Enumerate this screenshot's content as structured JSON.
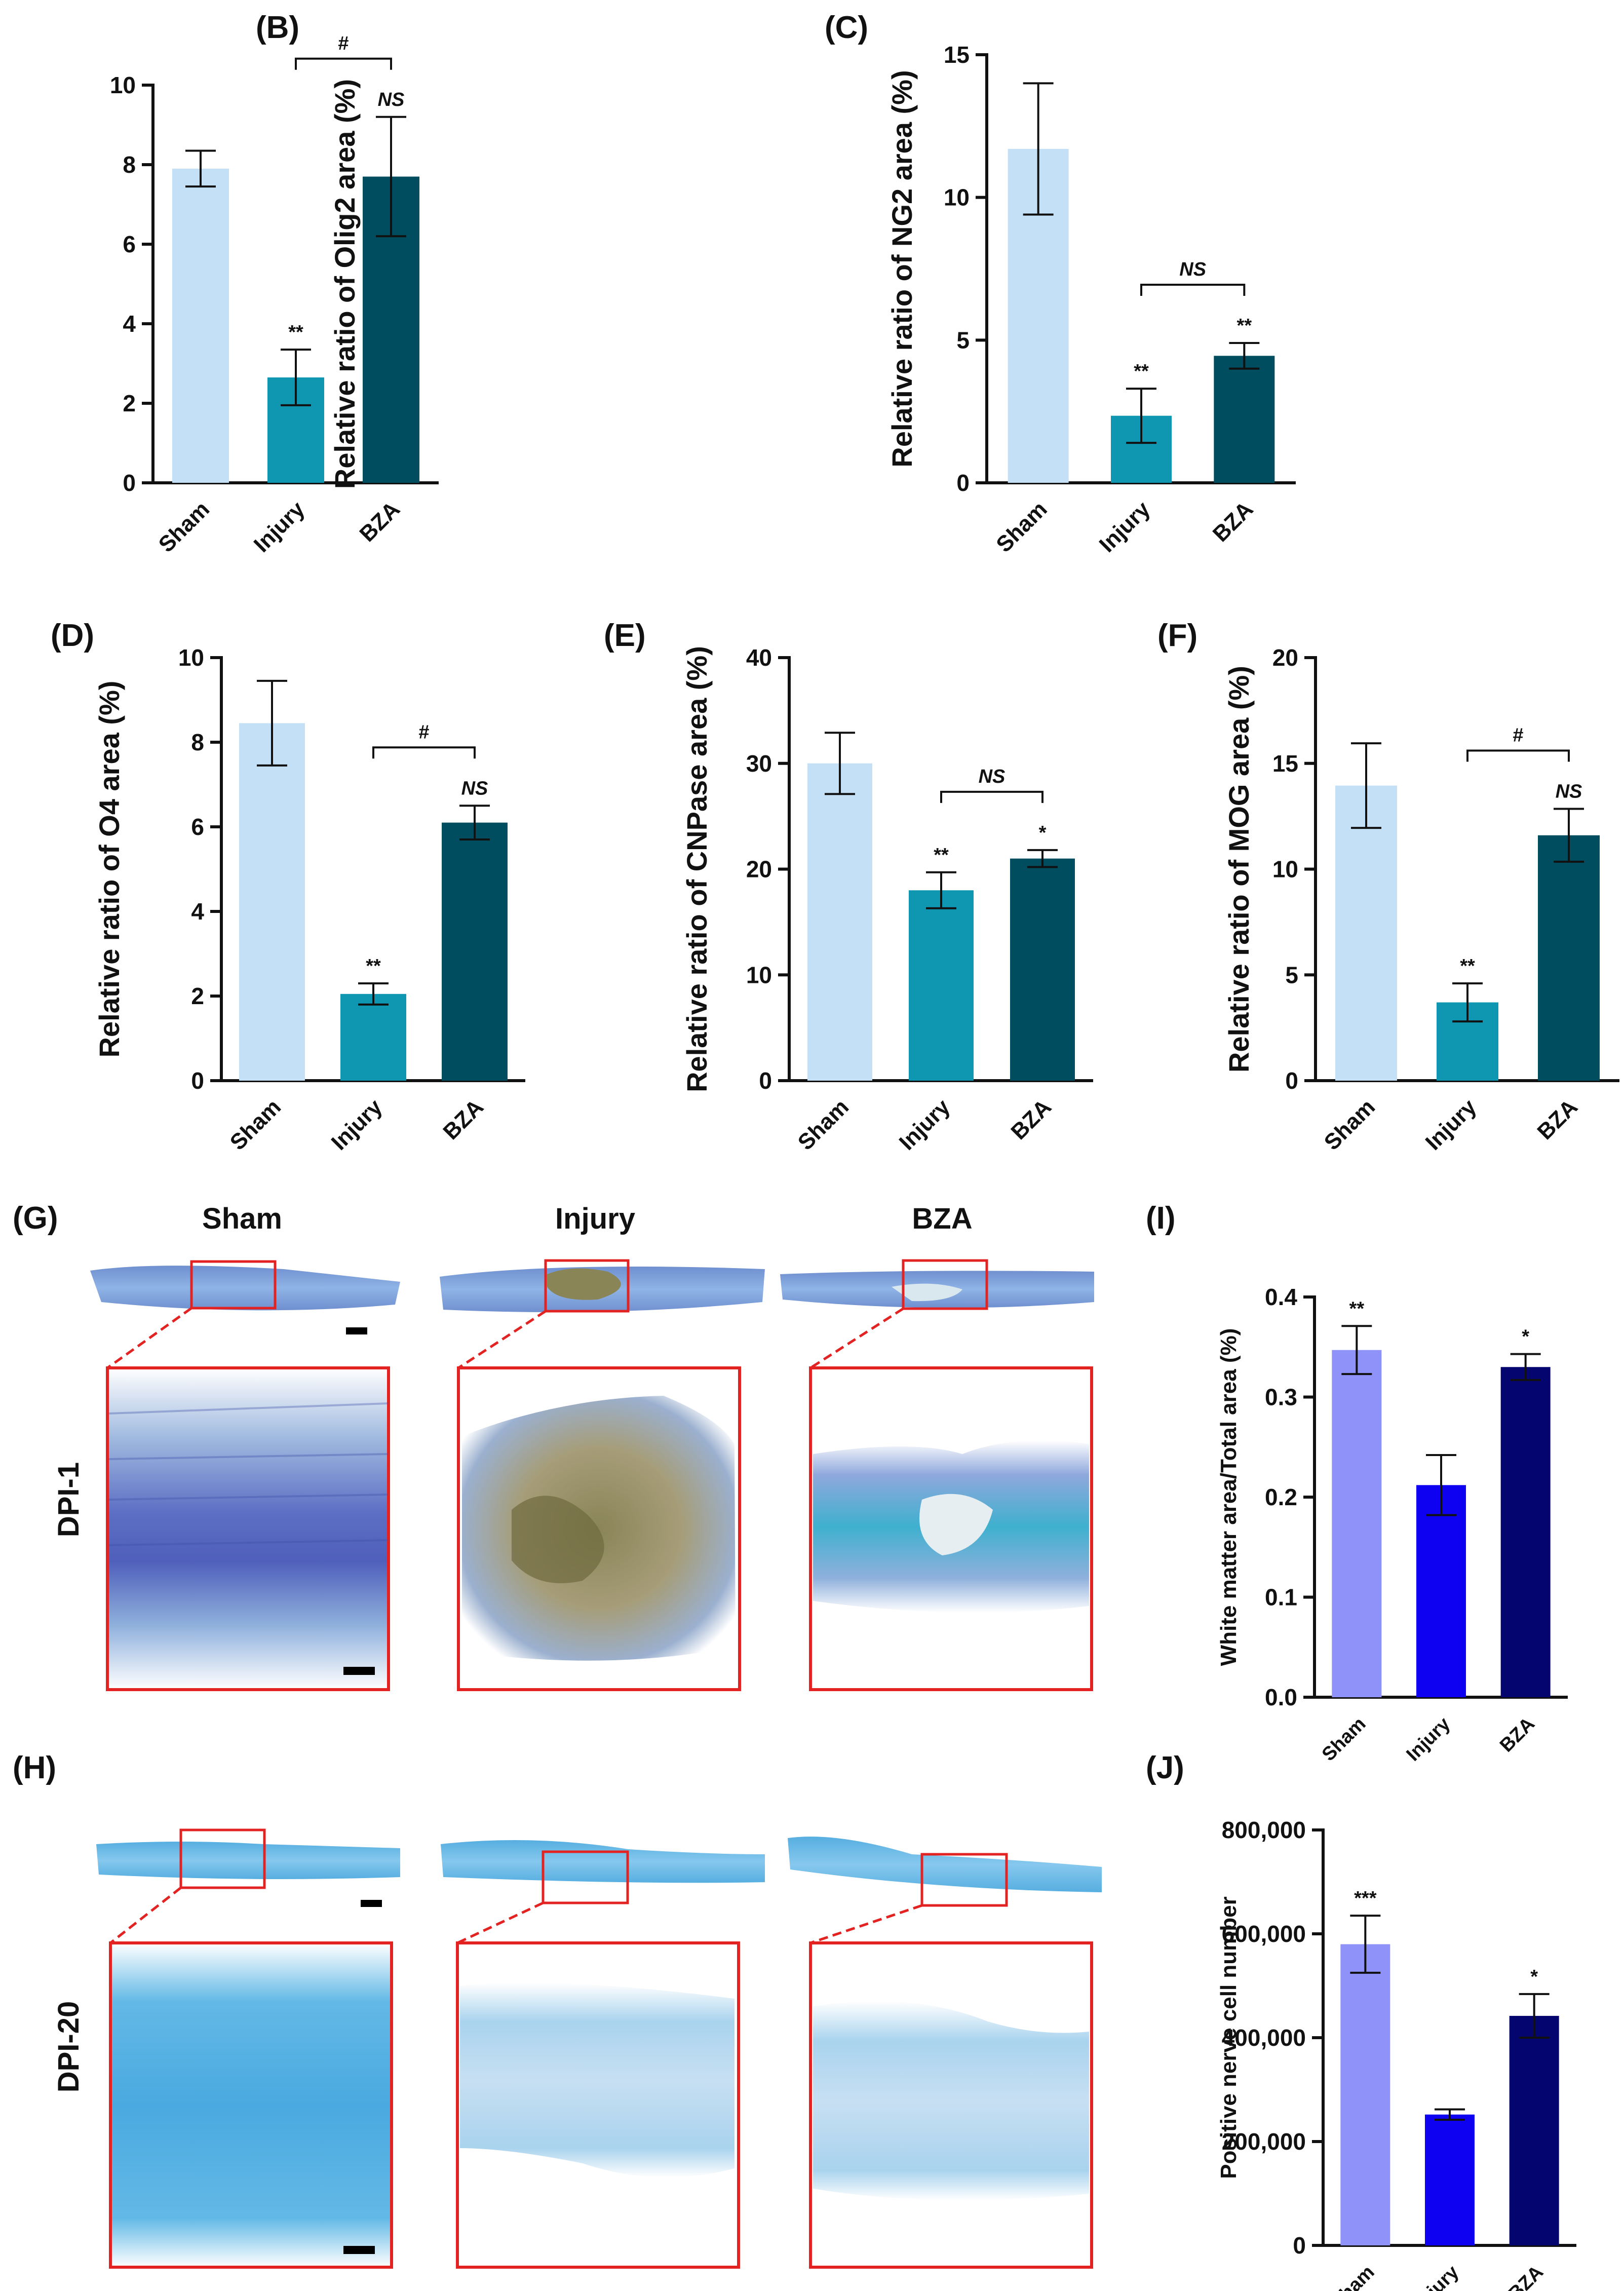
{
  "chart_data": [
    {
      "id": "B",
      "panel_label": "(B)",
      "type": "bar",
      "categories": [
        "Sham",
        "Injury",
        "BZA"
      ],
      "values": [
        7.9,
        2.65,
        7.7
      ],
      "errors": [
        0.45,
        0.7,
        1.5
      ],
      "ylabel": "Relative ratio of Olig2 area (%)",
      "ylim": [
        0,
        10
      ],
      "yticks": [
        "0",
        "2",
        "4",
        "6",
        "8",
        "10"
      ],
      "bar_colors": [
        "#c3e0f6",
        "#0f97b2",
        "#004d5f"
      ],
      "annotations": [
        "",
        "**",
        "NS"
      ],
      "bracket": {
        "from": 1,
        "to": 2,
        "label": "#"
      }
    },
    {
      "id": "C",
      "panel_label": "(C)",
      "type": "bar",
      "categories": [
        "Sham",
        "Injury",
        "BZA"
      ],
      "values": [
        11.7,
        2.35,
        4.45
      ],
      "errors": [
        2.3,
        0.95,
        0.45
      ],
      "ylabel": "Relative ratio of NG2 area (%)",
      "ylim": [
        0,
        15
      ],
      "yticks": [
        "0",
        "5",
        "10",
        "15"
      ],
      "bar_colors": [
        "#c3e0f6",
        "#0f97b2",
        "#004d5f"
      ],
      "annotations": [
        "",
        "**",
        "**"
      ],
      "bracket": {
        "from": 1,
        "to": 2,
        "label": "NS"
      }
    },
    {
      "id": "D",
      "panel_label": "(D)",
      "type": "bar",
      "categories": [
        "Sham",
        "Injury",
        "BZA"
      ],
      "values": [
        8.45,
        2.05,
        6.1
      ],
      "errors": [
        1.0,
        0.25,
        0.4
      ],
      "ylabel": "Relative ratio of O4 area (%)",
      "ylim": [
        0,
        10
      ],
      "yticks": [
        "0",
        "2",
        "4",
        "6",
        "8",
        "10"
      ],
      "bar_colors": [
        "#c3e0f6",
        "#0f97b2",
        "#004d5f"
      ],
      "annotations": [
        "",
        "**",
        "NS"
      ],
      "bracket": {
        "from": 1,
        "to": 2,
        "label": "#"
      }
    },
    {
      "id": "E",
      "panel_label": "(E)",
      "type": "bar",
      "categories": [
        "Sham",
        "Injury",
        "BZA"
      ],
      "values": [
        30.0,
        18.0,
        21.0
      ],
      "errors": [
        2.9,
        1.7,
        0.8
      ],
      "ylabel": "Relative ratio of CNPase area (%)",
      "ylim": [
        0,
        40
      ],
      "yticks": [
        "0",
        "10",
        "20",
        "30",
        "40"
      ],
      "bar_colors": [
        "#c3e0f6",
        "#0f97b2",
        "#004d5f"
      ],
      "annotations": [
        "",
        "**",
        "*"
      ],
      "bracket": {
        "from": 1,
        "to": 2,
        "label": "NS"
      }
    },
    {
      "id": "F",
      "panel_label": "(F)",
      "type": "bar",
      "categories": [
        "Sham",
        "Injury",
        "BZA"
      ],
      "values": [
        13.95,
        3.7,
        11.6
      ],
      "errors": [
        2.0,
        0.9,
        1.25
      ],
      "ylabel": "Relative ratio of MOG area (%)",
      "ylim": [
        0,
        20
      ],
      "yticks": [
        "0",
        "5",
        "10",
        "15",
        "20"
      ],
      "bar_colors": [
        "#c3e0f6",
        "#0f97b2",
        "#004d5f"
      ],
      "annotations": [
        "",
        "**",
        "NS"
      ],
      "bracket": {
        "from": 1,
        "to": 2,
        "label": "#"
      }
    },
    {
      "id": "I",
      "panel_label": "(I)",
      "type": "bar",
      "categories": [
        "Sham",
        "Injury",
        "BZA"
      ],
      "values": [
        0.347,
        0.212,
        0.33
      ],
      "errors": [
        0.024,
        0.03,
        0.013
      ],
      "ylabel": "White matter area/Total area (%)",
      "ylim": [
        0,
        0.4
      ],
      "yticks": [
        "0.0",
        "0.1",
        "0.2",
        "0.3",
        "0.4"
      ],
      "bar_colors": [
        "#8f92f9",
        "#0e00f0",
        "#04056f"
      ],
      "annotations": [
        "**",
        "",
        "*"
      ]
    },
    {
      "id": "J",
      "panel_label": "(J)",
      "type": "bar",
      "categories": [
        "Sham",
        "Injury",
        "BZA"
      ],
      "values": [
        580000,
        252000,
        442000
      ],
      "errors": [
        55000,
        10000,
        42000
      ],
      "ylabel": "Positive nerve cell number",
      "ylim": [
        0,
        800000
      ],
      "yticks": [
        "0",
        "200,000",
        "400,000",
        "600,000",
        "800,000"
      ],
      "bar_colors": [
        "#8f92f9",
        "#0e00f0",
        "#04056f"
      ],
      "annotations": [
        "***",
        "",
        "*"
      ]
    }
  ],
  "histology": {
    "G": {
      "panel_label": "(G)",
      "row_label": "DPI-1",
      "columns": [
        "Sham",
        "Injury",
        "BZA"
      ]
    },
    "H": {
      "panel_label": "(H)",
      "row_label": "DPI-20"
    }
  },
  "colors": {
    "box_red": "#e32222"
  }
}
